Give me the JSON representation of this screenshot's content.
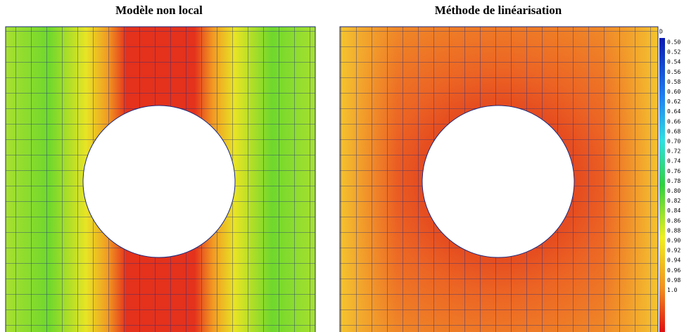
{
  "panels": [
    {
      "title": "Modèle non local"
    },
    {
      "title": "Méthode de linéarisation"
    }
  ],
  "colorbar": {
    "title": "D",
    "labels": [
      "0.50",
      "0.52",
      "0.54",
      "0.56",
      "0.58",
      "0.60",
      "0.62",
      "0.64",
      "0.66",
      "0.68",
      "0.70",
      "0.72",
      "0.74",
      "0.76",
      "0.78",
      "0.80",
      "0.82",
      "0.84",
      "0.86",
      "0.88",
      "0.90",
      "0.92",
      "0.94",
      "0.96",
      "0.98",
      "1.0"
    ]
  }
}
